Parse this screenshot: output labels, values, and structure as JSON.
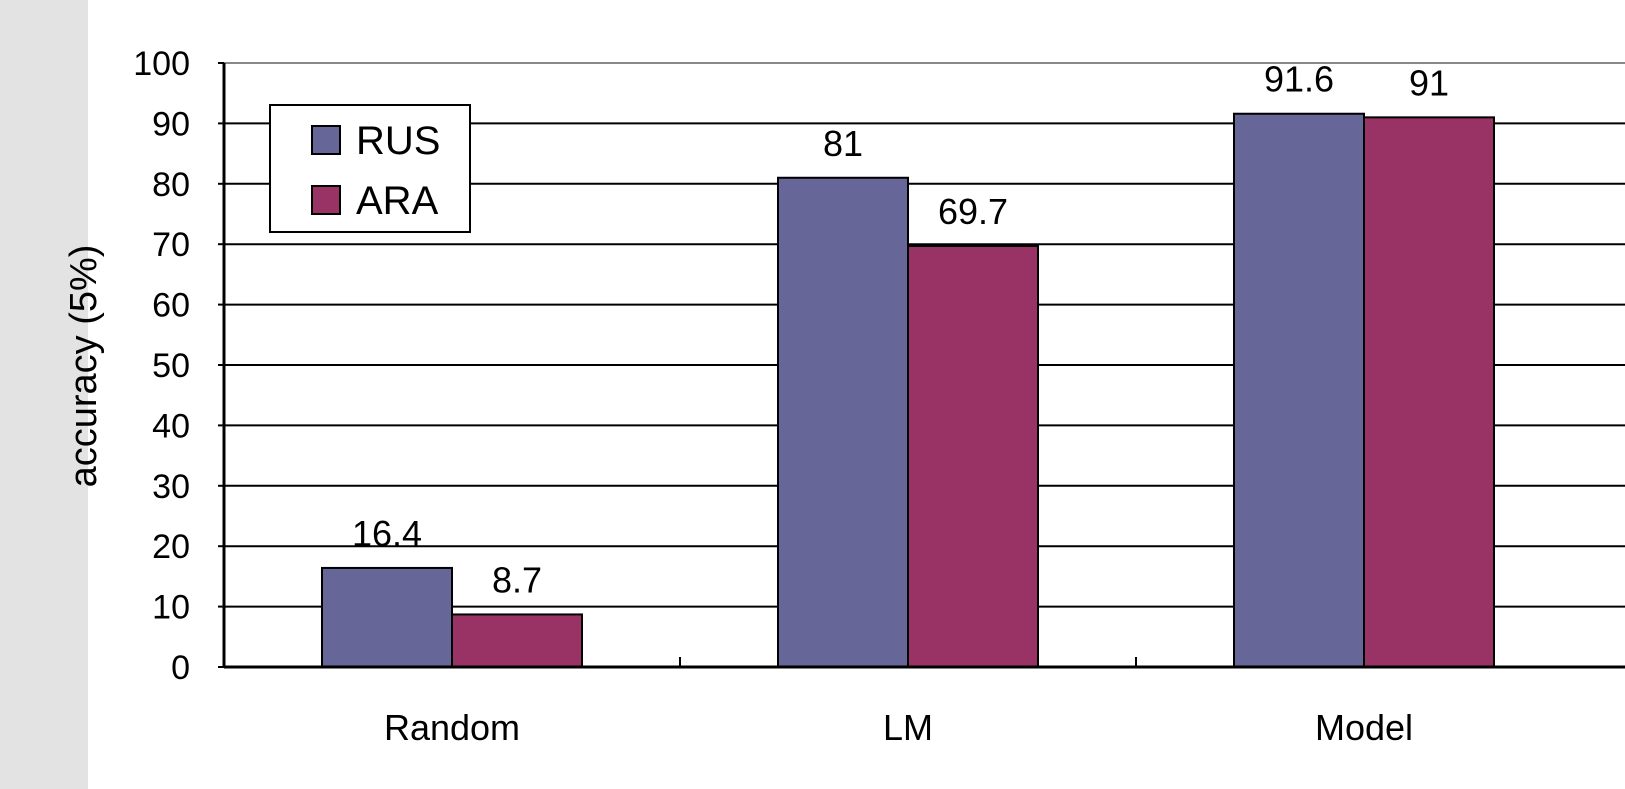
{
  "colors": {
    "panel": "#e3e3e3",
    "axis": "#000000",
    "grid": "#000000"
  },
  "chart_data": {
    "type": "bar",
    "categories": [
      "Random",
      "LM",
      "Model"
    ],
    "series": [
      {
        "name": "RUS",
        "values": [
          16.4,
          81,
          91.6
        ],
        "labels": [
          "16.4",
          "81",
          "91.6"
        ],
        "color": "#666699"
      },
      {
        "name": "ARA",
        "values": [
          8.7,
          69.7,
          91
        ],
        "labels": [
          "8.7",
          "69.7",
          "91"
        ],
        "color": "#993366"
      }
    ],
    "title": "",
    "xlabel": "",
    "ylabel": "accuracy (5%)",
    "ylim": [
      0,
      100
    ],
    "yticks": [
      0,
      10,
      20,
      30,
      40,
      50,
      60,
      70,
      80,
      90,
      100
    ],
    "grid": true,
    "legend": "top-left"
  }
}
